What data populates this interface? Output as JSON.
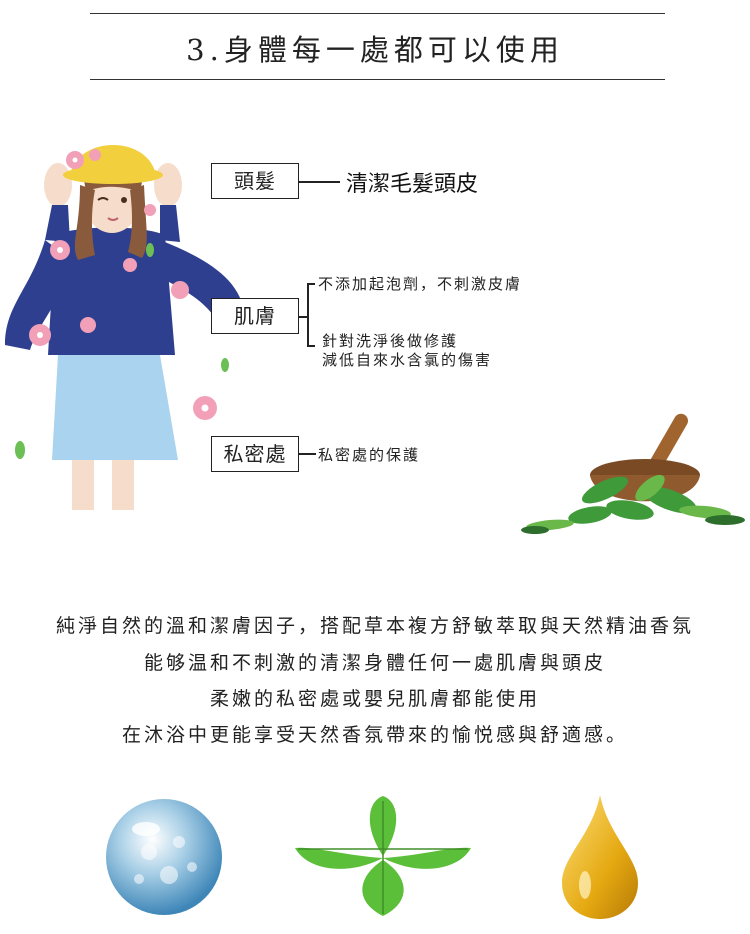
{
  "section": {
    "title": "3.身體每一處都可以使用"
  },
  "parts": [
    {
      "label": "頭髮",
      "descriptions": [
        "清潔毛髮頭皮"
      ]
    },
    {
      "label": "肌膚",
      "descriptions": [
        "不添加起泡劑，不刺激皮膚",
        "針對洗淨後做修護",
        "減低自來水含氯的傷害"
      ]
    },
    {
      "label": "私密處",
      "descriptions": [
        "私密處的保護"
      ]
    }
  ],
  "paragraph": [
    "純淨自然的溫和潔膚因子，搭配草本複方舒敏萃取與天然精油香氛",
    "能够温和不刺激的清潔身體任何一處肌膚與頭皮",
    "柔嫩的私密處或嬰兒肌膚都能使用",
    "在沐浴中更能享受天然香氛帶來的愉悦感與舒適感。"
  ],
  "icons": [
    "water-drop-sphere-icon",
    "mint-leaf-icon",
    "oil-drop-icon"
  ],
  "colors": {
    "sweater": "#2f3f8f",
    "skirt": "#a9d3ee",
    "hat": "#f2cf3c",
    "flower": "#f2a0b8",
    "oil": "#e5a912",
    "leaf": "#5cbf3a"
  }
}
